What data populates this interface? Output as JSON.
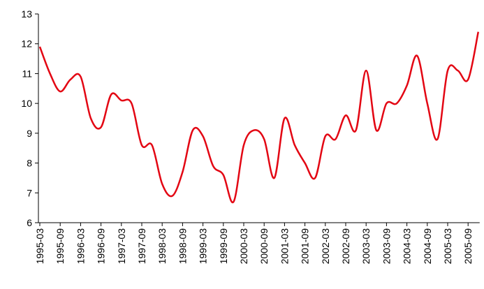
{
  "chart_data": {
    "type": "line",
    "categories": [
      "1995-03",
      null,
      "1995-09",
      null,
      "1996-03",
      null,
      "1996-09",
      null,
      "1997-03",
      null,
      "1997-09",
      null,
      "1998-03",
      null,
      "1998-09",
      null,
      "1999-03",
      null,
      "1999-09",
      null,
      "2000-03",
      null,
      "2000-09",
      null,
      "2001-03",
      null,
      "2001-09",
      null,
      "2002-03",
      null,
      "2002-09",
      null,
      "2003-03",
      null,
      "2003-09",
      null,
      "2004-03",
      null,
      "2004-09",
      null,
      "2005-03",
      null,
      "2005-09",
      null
    ],
    "values": [
      11.9,
      11.0,
      10.4,
      10.8,
      10.9,
      9.5,
      9.2,
      10.3,
      10.1,
      10.0,
      8.6,
      8.6,
      7.3,
      6.9,
      7.7,
      9.1,
      8.9,
      7.9,
      7.6,
      6.7,
      8.6,
      9.1,
      8.8,
      7.5,
      9.5,
      8.6,
      8.0,
      7.5,
      8.9,
      8.8,
      9.6,
      9.1,
      11.1,
      9.1,
      10.0,
      10.0,
      10.6,
      11.6,
      10.0,
      8.8,
      11.1,
      11.1,
      10.8,
      12.4
    ],
    "color": "#e30613",
    "ylim": [
      6,
      13
    ],
    "yticks": [
      6,
      7,
      8,
      9,
      10,
      11,
      12,
      13
    ],
    "grid": false
  }
}
